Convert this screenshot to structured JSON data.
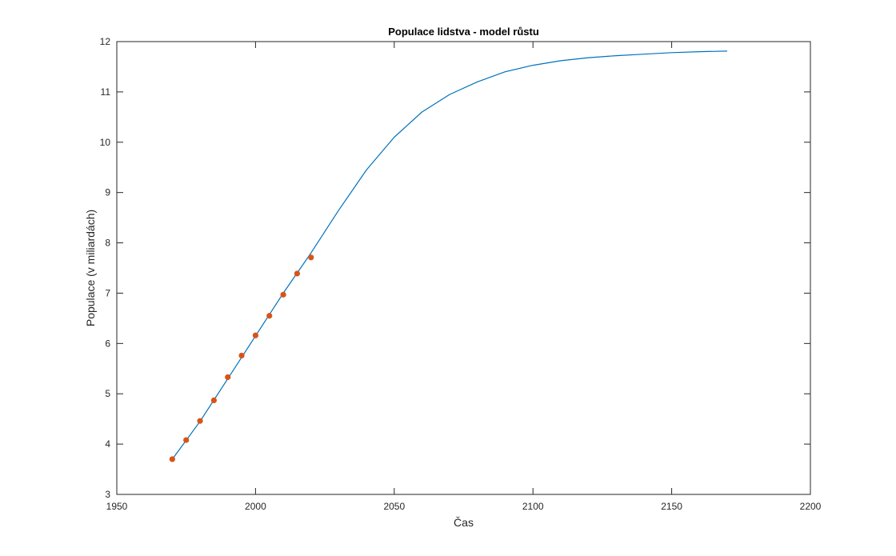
{
  "chart_data": {
    "type": "line",
    "title": "Populace lidstva - model růstu",
    "xlabel": "Čas",
    "ylabel": "Populace (v miliardách)",
    "xlim": [
      1950,
      2200
    ],
    "ylim": [
      3,
      12
    ],
    "x_ticks": [
      1950,
      2000,
      2050,
      2100,
      2150,
      2200
    ],
    "y_ticks": [
      3,
      4,
      5,
      6,
      7,
      8,
      9,
      10,
      11,
      12
    ],
    "grid": false,
    "legend": "none",
    "series": [
      {
        "kind": "line",
        "color": "#0072BD",
        "x": [
          1970,
          1980,
          1990,
          2000,
          2010,
          2020,
          2030,
          2040,
          2050,
          2060,
          2070,
          2080,
          2090,
          2100,
          2110,
          2120,
          2130,
          2140,
          2150,
          2160,
          2170
        ],
        "y": [
          3.7,
          4.45,
          5.3,
          6.15,
          7.0,
          7.8,
          8.65,
          9.45,
          10.1,
          10.6,
          10.95,
          11.2,
          11.4,
          11.53,
          11.62,
          11.68,
          11.72,
          11.75,
          11.78,
          11.8,
          11.81
        ]
      },
      {
        "kind": "scatter",
        "color": "#D95319",
        "x": [
          1970,
          1975,
          1980,
          1985,
          1990,
          1995,
          2000,
          2005,
          2010,
          2015,
          2020
        ],
        "y": [
          3.7,
          4.08,
          4.46,
          4.87,
          5.33,
          5.76,
          6.16,
          6.55,
          6.97,
          7.39,
          7.71
        ]
      }
    ]
  }
}
